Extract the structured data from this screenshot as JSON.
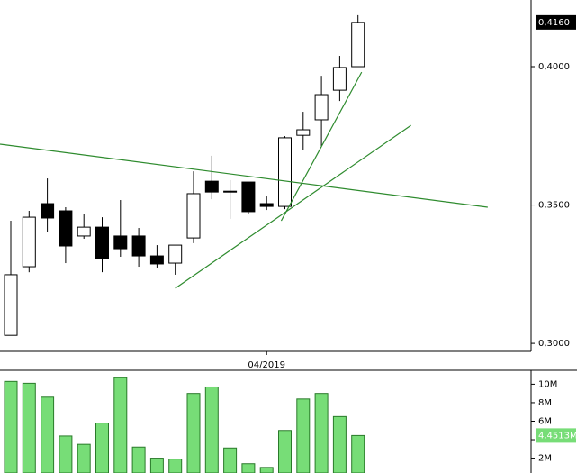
{
  "chart_data": [
    {
      "type": "candlestick",
      "categories": [
        null,
        null,
        null,
        null,
        null,
        null,
        null,
        null,
        null,
        null,
        null,
        null,
        null,
        null,
        "04/2019",
        null,
        null,
        null,
        null,
        null
      ],
      "open": [
        0.3029,
        0.3277,
        0.3505,
        0.3479,
        0.3388,
        0.342,
        0.3388,
        0.3388,
        0.3316,
        0.329,
        0.3381,
        0.3586,
        0.355,
        0.3583,
        0.3505,
        0.3495,
        0.3752,
        0.3808,
        0.3915,
        0.4
      ],
      "high": [
        0.3443,
        0.3479,
        0.3596,
        0.3492,
        0.3469,
        0.3456,
        0.3518,
        0.3417,
        0.3355,
        0.3355,
        0.3622,
        0.3678,
        0.359,
        0.3583,
        0.3531,
        0.3749,
        0.3837,
        0.3967,
        0.4039,
        0.4186
      ],
      "low": [
        0.3029,
        0.3257,
        0.3401,
        0.329,
        0.3378,
        0.3257,
        0.3313,
        0.3277,
        0.3274,
        0.3248,
        0.3362,
        0.3521,
        0.345,
        0.3466,
        0.3482,
        0.3485,
        0.37,
        0.3713,
        0.3876,
        0.4
      ],
      "close": [
        0.3248,
        0.3456,
        0.3453,
        0.3352,
        0.342,
        0.3306,
        0.3342,
        0.3316,
        0.3287,
        0.3355,
        0.3541,
        0.3547,
        0.3547,
        0.3476,
        0.3495,
        0.3743,
        0.3772,
        0.3899,
        0.3997,
        0.416
      ],
      "up_color": "#ffffff",
      "down_color": "#000000",
      "ylim": [
        0.2971,
        0.4241
      ],
      "yticks": [
        {
          "value": 0.3,
          "label": "0,3000"
        },
        {
          "value": 0.35,
          "label": "0,3500"
        },
        {
          "value": 0.4,
          "label": "0,4000"
        }
      ],
      "last_label": {
        "value": 0.416,
        "label": "0,4160"
      },
      "trendlines": [
        {
          "x": [
            -0.59,
            26.1
          ],
          "y": [
            0.372,
            0.3492
          ],
          "color": "#2e8b2e"
        },
        {
          "x": [
            9.0,
            21.9
          ],
          "y": [
            0.3199,
            0.3788
          ],
          "color": "#2e8b2e"
        },
        {
          "x": [
            14.8,
            19.2
          ],
          "y": [
            0.3443,
            0.398
          ],
          "color": "#2e8b2e"
        }
      ]
    },
    {
      "type": "bar",
      "values": [
        10.3,
        10.1,
        8.6,
        4.4,
        3.5,
        5.8,
        10.7,
        3.2,
        2.0,
        1.9,
        9.0,
        9.7,
        3.1,
        1.4,
        1.0,
        5.0,
        8.4,
        9.0,
        6.5,
        4.4513
      ],
      "color": "#77dd77",
      "ylim": [
        0.4,
        11.5
      ],
      "yticks": [
        {
          "value": 2,
          "label": "2M"
        },
        {
          "value": 4,
          "label": "4M"
        },
        {
          "value": 6,
          "label": "6M"
        },
        {
          "value": 8,
          "label": "8M"
        },
        {
          "value": 10,
          "label": "10M"
        }
      ],
      "last_label": {
        "value": 4.4513,
        "label": "4,4513M"
      }
    }
  ]
}
